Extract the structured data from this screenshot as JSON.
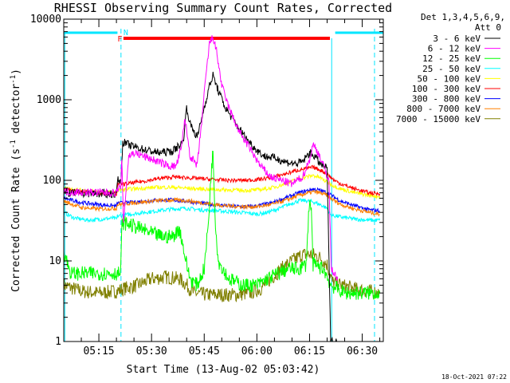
{
  "chart_data": {
    "type": "line",
    "title": "RHESSI Observing Summary Count Rates, Corrected",
    "xlabel": "Start Time (13-Aug-02 05:03:42)",
    "ylabel_parts": [
      "Corrected Count Rate (s",
      "-1",
      " detector",
      "-1",
      ")"
    ],
    "yscale": "log",
    "ylim": [
      1,
      10000
    ],
    "xlim_minutes": [
      5.0,
      96.0
    ],
    "yticks": [
      {
        "value": 1,
        "label": "1"
      },
      {
        "value": 10,
        "label": "10"
      },
      {
        "value": 100,
        "label": "100"
      },
      {
        "value": 1000,
        "label": "1000"
      },
      {
        "value": 10000,
        "label": "10000"
      }
    ],
    "xticks": [
      {
        "minute": 15,
        "label": "05:15"
      },
      {
        "minute": 30,
        "label": "05:30"
      },
      {
        "minute": 45,
        "label": "05:45"
      },
      {
        "minute": 60,
        "label": "06:00"
      },
      {
        "minute": 75,
        "label": "06:15"
      },
      {
        "minute": 90,
        "label": "06:30"
      }
    ],
    "legend_header": [
      "Det 1,3,4,5,6,9,",
      "Att 0"
    ],
    "legend_placement": "top-right outside",
    "series": [
      {
        "name": "3 - 6 keV",
        "color": "#000000",
        "points": [
          [
            5,
            70
          ],
          [
            20,
            68
          ],
          [
            20.3,
            100
          ],
          [
            21.3,
            100
          ],
          [
            21.8,
            300
          ],
          [
            24,
            270
          ],
          [
            28,
            240
          ],
          [
            32,
            220
          ],
          [
            36,
            230
          ],
          [
            39,
            300
          ],
          [
            40,
            800
          ],
          [
            41,
            500
          ],
          [
            43,
            340
          ],
          [
            45,
            800
          ],
          [
            46.5,
            1500
          ],
          [
            47.5,
            2000
          ],
          [
            49,
            1300
          ],
          [
            51,
            800
          ],
          [
            54,
            500
          ],
          [
            57,
            330
          ],
          [
            59,
            260
          ],
          [
            62,
            200
          ],
          [
            65,
            190
          ],
          [
            68,
            170
          ],
          [
            71,
            160
          ],
          [
            73,
            170
          ],
          [
            75,
            220
          ],
          [
            76.5,
            200
          ],
          [
            78,
            160
          ],
          [
            80,
            140
          ],
          [
            81,
            1.0
          ],
          [
            83,
            1.0
          ]
        ]
      },
      {
        "name": "6 - 12 keV",
        "color": "#ff00ff",
        "points": [
          [
            5,
            72
          ],
          [
            20,
            70
          ],
          [
            20.3,
            80
          ],
          [
            21.3,
            80
          ],
          [
            21.5,
            200
          ],
          [
            22,
            30
          ],
          [
            23.5,
            200
          ],
          [
            25,
            220
          ],
          [
            29,
            190
          ],
          [
            32,
            170
          ],
          [
            35,
            150
          ],
          [
            37,
            150
          ],
          [
            38.5,
            250
          ],
          [
            39.5,
            600
          ],
          [
            41,
            200
          ],
          [
            43,
            150
          ],
          [
            44,
            400
          ],
          [
            45.5,
            2000
          ],
          [
            46.5,
            5000
          ],
          [
            47.5,
            6000
          ],
          [
            48.5,
            4000
          ],
          [
            50,
            1500
          ],
          [
            52,
            800
          ],
          [
            55,
            400
          ],
          [
            58,
            250
          ],
          [
            61,
            150
          ],
          [
            64,
            110
          ],
          [
            67,
            100
          ],
          [
            70,
            90
          ],
          [
            73,
            110
          ],
          [
            75,
            180
          ],
          [
            76,
            280
          ],
          [
            77.5,
            220
          ],
          [
            79,
            150
          ],
          [
            80.5,
            100
          ],
          [
            81.2,
            8
          ],
          [
            83,
            6
          ]
        ]
      },
      {
        "name": "12 - 25 keV",
        "color": "#00ff00",
        "points": [
          [
            5,
            13
          ],
          [
            7,
            7
          ],
          [
            12,
            7
          ],
          [
            20,
            7
          ],
          [
            21.2,
            7
          ],
          [
            21.6,
            30
          ],
          [
            24,
            28
          ],
          [
            27,
            25
          ],
          [
            30,
            22
          ],
          [
            33,
            20
          ],
          [
            36,
            20
          ],
          [
            38,
            25
          ],
          [
            40,
            9
          ],
          [
            41,
            6
          ],
          [
            43,
            5
          ],
          [
            45,
            8
          ],
          [
            46.2,
            30
          ],
          [
            47,
            130
          ],
          [
            47.5,
            220
          ],
          [
            48.2,
            30
          ],
          [
            49,
            10
          ],
          [
            52,
            6
          ],
          [
            56,
            5
          ],
          [
            60,
            5
          ],
          [
            63,
            6
          ],
          [
            66,
            7
          ],
          [
            69,
            8
          ],
          [
            72,
            8
          ],
          [
            74,
            9
          ],
          [
            75,
            60
          ],
          [
            75.5,
            40
          ],
          [
            76,
            9
          ],
          [
            79,
            8
          ],
          [
            81,
            5
          ],
          [
            85,
            4
          ],
          [
            90,
            4
          ],
          [
            95,
            4
          ]
        ]
      },
      {
        "name": "25 - 50 keV",
        "color": "#00ffff",
        "points": [
          [
            5,
            40
          ],
          [
            8,
            34
          ],
          [
            12,
            32
          ],
          [
            16,
            33
          ],
          [
            19,
            34
          ],
          [
            20,
            33
          ],
          [
            20.3,
            36
          ],
          [
            24,
            38
          ],
          [
            28,
            40
          ],
          [
            32,
            42
          ],
          [
            36,
            44
          ],
          [
            40,
            45
          ],
          [
            44,
            43
          ],
          [
            48,
            42
          ],
          [
            52,
            41
          ],
          [
            55,
            40
          ],
          [
            58,
            39
          ],
          [
            60,
            38
          ],
          [
            63,
            40
          ],
          [
            66,
            44
          ],
          [
            68,
            48
          ],
          [
            70,
            52
          ],
          [
            72,
            56
          ],
          [
            74,
            56
          ],
          [
            76,
            54
          ],
          [
            78,
            50
          ],
          [
            80,
            45
          ],
          [
            81,
            37
          ],
          [
            84,
            35
          ],
          [
            88,
            33
          ],
          [
            92,
            32
          ],
          [
            95,
            32
          ]
        ]
      },
      {
        "name": "50 - 100 keV",
        "color": "#ffff00",
        "points": [
          [
            5,
            80
          ],
          [
            10,
            75
          ],
          [
            15,
            72
          ],
          [
            20,
            70
          ],
          [
            20.3,
            75
          ],
          [
            24,
            78
          ],
          [
            28,
            80
          ],
          [
            32,
            82
          ],
          [
            36,
            82
          ],
          [
            40,
            80
          ],
          [
            44,
            78
          ],
          [
            48,
            77
          ],
          [
            52,
            76
          ],
          [
            56,
            75
          ],
          [
            60,
            76
          ],
          [
            64,
            80
          ],
          [
            68,
            90
          ],
          [
            72,
            105
          ],
          [
            76,
            115
          ],
          [
            78,
            108
          ],
          [
            80,
            95
          ],
          [
            82,
            85
          ],
          [
            84,
            78
          ],
          [
            88,
            70
          ],
          [
            92,
            65
          ],
          [
            95,
            63
          ]
        ]
      },
      {
        "name": "100 - 300 keV",
        "color": "#ff0000",
        "points": [
          [
            5,
            78
          ],
          [
            10,
            72
          ],
          [
            15,
            70
          ],
          [
            20,
            68
          ],
          [
            20.3,
            88
          ],
          [
            24,
            92
          ],
          [
            28,
            98
          ],
          [
            32,
            105
          ],
          [
            36,
            110
          ],
          [
            40,
            108
          ],
          [
            44,
            105
          ],
          [
            48,
            102
          ],
          [
            52,
            100
          ],
          [
            56,
            100
          ],
          [
            60,
            102
          ],
          [
            64,
            108
          ],
          [
            68,
            120
          ],
          [
            72,
            135
          ],
          [
            76,
            145
          ],
          [
            78,
            135
          ],
          [
            80,
            120
          ],
          [
            82,
            100
          ],
          [
            84,
            90
          ],
          [
            88,
            78
          ],
          [
            92,
            70
          ],
          [
            95,
            68
          ]
        ]
      },
      {
        "name": "300 - 800 keV",
        "color": "#0000ff",
        "points": [
          [
            5,
            60
          ],
          [
            10,
            53
          ],
          [
            15,
            50
          ],
          [
            20,
            48
          ],
          [
            20.3,
            52
          ],
          [
            24,
            53
          ],
          [
            28,
            55
          ],
          [
            32,
            57
          ],
          [
            36,
            57
          ],
          [
            40,
            55
          ],
          [
            44,
            52
          ],
          [
            48,
            50
          ],
          [
            52,
            48
          ],
          [
            56,
            47
          ],
          [
            60,
            48
          ],
          [
            64,
            52
          ],
          [
            68,
            60
          ],
          [
            72,
            70
          ],
          [
            76,
            78
          ],
          [
            78,
            75
          ],
          [
            80,
            70
          ],
          [
            82,
            62
          ],
          [
            84,
            55
          ],
          [
            88,
            48
          ],
          [
            92,
            43
          ],
          [
            95,
            42
          ]
        ]
      },
      {
        "name": "800 - 7000 keV",
        "color": "#ff8000",
        "points": [
          [
            5,
            55
          ],
          [
            10,
            46
          ],
          [
            15,
            44
          ],
          [
            20,
            45
          ],
          [
            20.3,
            50
          ],
          [
            24,
            52
          ],
          [
            28,
            54
          ],
          [
            32,
            56
          ],
          [
            36,
            57
          ],
          [
            40,
            56
          ],
          [
            44,
            53
          ],
          [
            48,
            50
          ],
          [
            52,
            48
          ],
          [
            56,
            47
          ],
          [
            60,
            47
          ],
          [
            64,
            50
          ],
          [
            68,
            56
          ],
          [
            72,
            65
          ],
          [
            76,
            72
          ],
          [
            78,
            70
          ],
          [
            80,
            65
          ],
          [
            82,
            56
          ],
          [
            84,
            50
          ],
          [
            88,
            44
          ],
          [
            92,
            40
          ],
          [
            95,
            38
          ]
        ]
      },
      {
        "name": "7000 - 15000 keV",
        "color": "#808000",
        "points": [
          [
            5,
            5
          ],
          [
            10,
            4.2
          ],
          [
            15,
            4
          ],
          [
            20,
            4.2
          ],
          [
            22,
            4.5
          ],
          [
            26,
            5
          ],
          [
            30,
            6
          ],
          [
            34,
            6.3
          ],
          [
            38,
            6
          ],
          [
            40,
            5
          ],
          [
            42,
            4
          ],
          [
            46,
            3.8
          ],
          [
            50,
            3.8
          ],
          [
            54,
            3.8
          ],
          [
            58,
            4
          ],
          [
            61,
            4.5
          ],
          [
            64,
            6
          ],
          [
            67,
            8
          ],
          [
            70,
            10
          ],
          [
            73,
            12
          ],
          [
            76,
            12
          ],
          [
            78,
            11
          ],
          [
            80,
            9
          ],
          [
            81.5,
            5.5
          ],
          [
            84,
            5
          ],
          [
            88,
            4.5
          ],
          [
            92,
            4.2
          ],
          [
            95,
            4
          ]
        ]
      }
    ],
    "annotations": {
      "saa_label": "N",
      "flare_label": "F"
    }
  },
  "footer": {
    "timestamp": "18-Oct-2021 07:22"
  }
}
